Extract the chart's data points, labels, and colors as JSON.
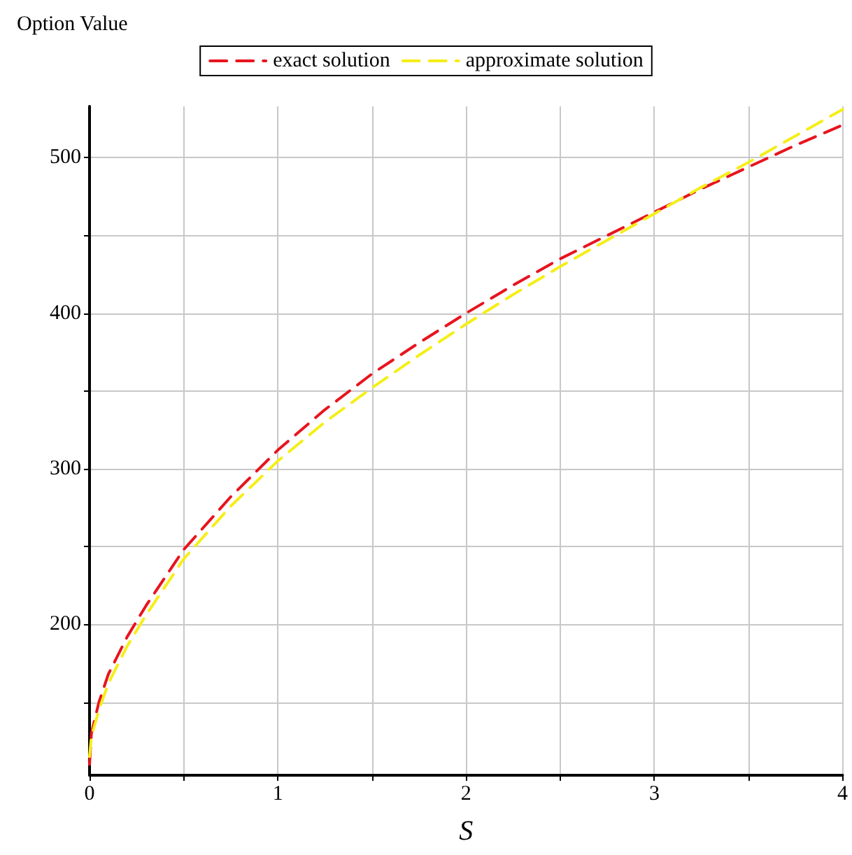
{
  "chart_data": {
    "type": "line",
    "xlabel": "S",
    "ylabel": "Option Value",
    "xlim": [
      0,
      4
    ],
    "ylim": [
      103,
      533
    ],
    "xticks": [
      0,
      {
        "value": 0.5,
        "label": null
      },
      1,
      {
        "value": 1.5,
        "label": null
      },
      2,
      {
        "value": 2.5,
        "label": null
      },
      3,
      {
        "value": 3.5,
        "label": null
      },
      4
    ],
    "yticks": [
      {
        "value": 150,
        "label": null
      },
      200,
      {
        "value": 250,
        "label": null
      },
      300,
      {
        "value": 350,
        "label": null
      },
      400,
      {
        "value": 450,
        "label": null
      },
      500
    ],
    "grid": true,
    "legend": "top",
    "line_style": "dashed",
    "marker": "none",
    "series": [
      {
        "name": "exact solution",
        "color": "#e8141e",
        "x": [
          0,
          0.01,
          0.05,
          0.1,
          0.2,
          0.3,
          0.5,
          0.75,
          1,
          1.25,
          1.5,
          1.75,
          2,
          2.25,
          2.5,
          2.75,
          3,
          3.25,
          3.5,
          3.75,
          4
        ],
        "values": [
          110,
          130,
          150,
          168,
          192,
          212,
          248,
          282,
          312,
          338,
          361,
          381,
          400,
          418,
          435,
          450,
          465,
          480,
          494,
          508,
          521
        ]
      },
      {
        "name": "approximate solution",
        "color": "#f5ee18",
        "x": [
          0,
          0.01,
          0.05,
          0.1,
          0.2,
          0.3,
          0.5,
          0.75,
          1,
          1.25,
          1.5,
          1.75,
          2,
          2.25,
          2.5,
          2.75,
          3,
          3.25,
          3.5,
          3.75,
          4
        ],
        "values": [
          115,
          128,
          145,
          162,
          186,
          206,
          242,
          276,
          305,
          330,
          352,
          373,
          393,
          412,
          430,
          447,
          464,
          481,
          497,
          514,
          531
        ]
      }
    ]
  }
}
